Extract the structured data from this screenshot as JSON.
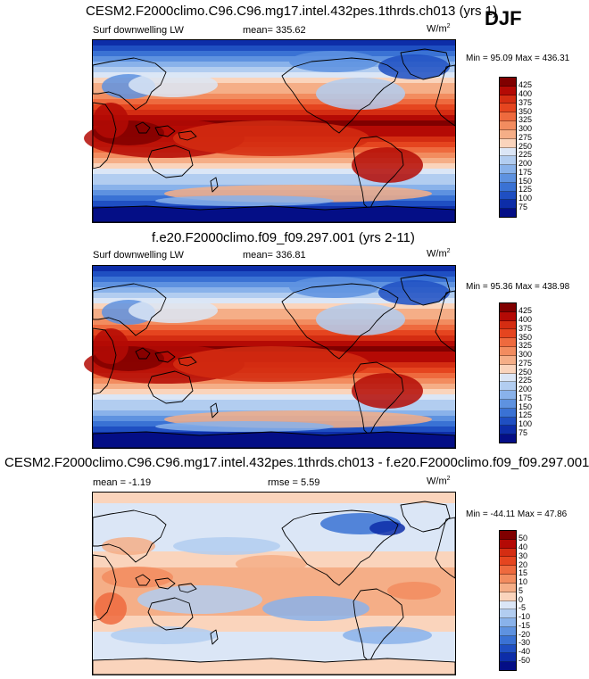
{
  "season": "DJF",
  "panels": [
    {
      "title": "CESM2.F2000climo.C96.C96.mg17.intel.432pes.1thrds.ch013 (yrs 1)",
      "variable": "Surf downwelling LW",
      "mean": "mean= 335.62",
      "rmse": "",
      "units": "W/m",
      "units_exp": "2",
      "minmax": "Min =  95.09 Max = 436.31",
      "field_type": "absolute",
      "colorbar": {
        "labels": [
          "425",
          "400",
          "375",
          "350",
          "325",
          "300",
          "275",
          "250",
          "225",
          "200",
          "175",
          "150",
          "125",
          "100",
          "75"
        ],
        "colors": [
          "#800000",
          "#b40a05",
          "#d42d12",
          "#e5451f",
          "#ee6a3e",
          "#f28c5f",
          "#f5ae87",
          "#fad4bc",
          "#dbe6f6",
          "#b2cdf0",
          "#89b2ea",
          "#5e92e0",
          "#3a72d4",
          "#1f4fc2",
          "#0d2da8",
          "#040e86"
        ]
      }
    },
    {
      "title": "f.e20.F2000climo.f09_f09.297.001 (yrs 2-11)",
      "variable": "Surf downwelling LW",
      "mean": "mean= 336.81",
      "rmse": "",
      "units": "W/m",
      "units_exp": "2",
      "minmax": "Min =  95.36 Max = 438.98",
      "field_type": "absolute",
      "colorbar": {
        "labels": [
          "425",
          "400",
          "375",
          "350",
          "325",
          "300",
          "275",
          "250",
          "225",
          "200",
          "175",
          "150",
          "125",
          "100",
          "75"
        ],
        "colors": [
          "#800000",
          "#b40a05",
          "#d42d12",
          "#e5451f",
          "#ee6a3e",
          "#f28c5f",
          "#f5ae87",
          "#fad4bc",
          "#dbe6f6",
          "#b2cdf0",
          "#89b2ea",
          "#5e92e0",
          "#3a72d4",
          "#1f4fc2",
          "#0d2da8",
          "#040e86"
        ]
      }
    },
    {
      "title": "CESM2.F2000climo.C96.C96.mg17.intel.432pes.1thrds.ch013 - f.e20.F2000climo.f09_f09.297.001",
      "variable": "",
      "mean": "mean =  -1.19",
      "rmse": "rmse =   5.59",
      "units": "W/m",
      "units_exp": "2",
      "minmax": "Min = -44.11 Max =  47.86",
      "field_type": "difference",
      "colorbar": {
        "labels": [
          "50",
          "40",
          "30",
          "20",
          "15",
          "10",
          "5",
          "0",
          "-5",
          "-10",
          "-15",
          "-20",
          "-30",
          "-40",
          "-50"
        ],
        "colors": [
          "#800000",
          "#b40a05",
          "#d42d12",
          "#e5451f",
          "#ee6a3e",
          "#f28c5f",
          "#f5ae87",
          "#fad4bc",
          "#dbe6f6",
          "#b2cdf0",
          "#89b2ea",
          "#5e92e0",
          "#3a72d4",
          "#1f4fc2",
          "#0d2da8",
          "#040e86"
        ]
      }
    }
  ]
}
